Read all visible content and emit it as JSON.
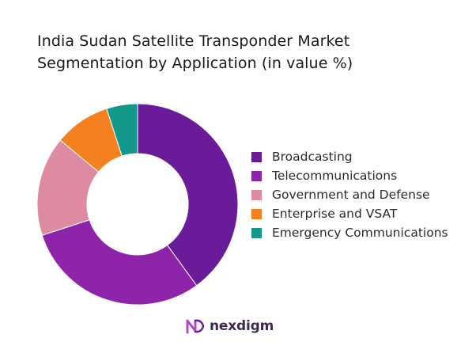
{
  "title_lines": [
    "India Sudan Satellite Transponder Market",
    "Segmentation by Application (in value %)"
  ],
  "chart_data": {
    "type": "pie",
    "variant": "donut",
    "title": "India Sudan Satellite Transponder Market Segmentation by Application (in value %)",
    "categories": [
      "Broadcasting",
      "Telecommunications",
      "Government and Defense",
      "Enterprise and VSAT",
      "Emergency Communications"
    ],
    "values": [
      40,
      30,
      16,
      9,
      5
    ],
    "colors": [
      "#6a1b9a",
      "#8e24aa",
      "#de8aa0",
      "#f4801f",
      "#12998a"
    ],
    "legend_position": "right"
  },
  "legend": {
    "items": [
      {
        "label": "Broadcasting",
        "color": "#6a1b9a"
      },
      {
        "label": "Telecommunications",
        "color": "#8e24aa"
      },
      {
        "label": "Government and Defense",
        "color": "#de8aa0"
      },
      {
        "label": "Enterprise and VSAT",
        "color": "#f4801f"
      },
      {
        "label": "Emergency Communications",
        "color": "#12998a"
      }
    ]
  },
  "brand": {
    "name": "nexdigm",
    "icon": "nexdigm-logo-mark",
    "color": "#3b2a4f",
    "accent": "#b04bc6"
  }
}
